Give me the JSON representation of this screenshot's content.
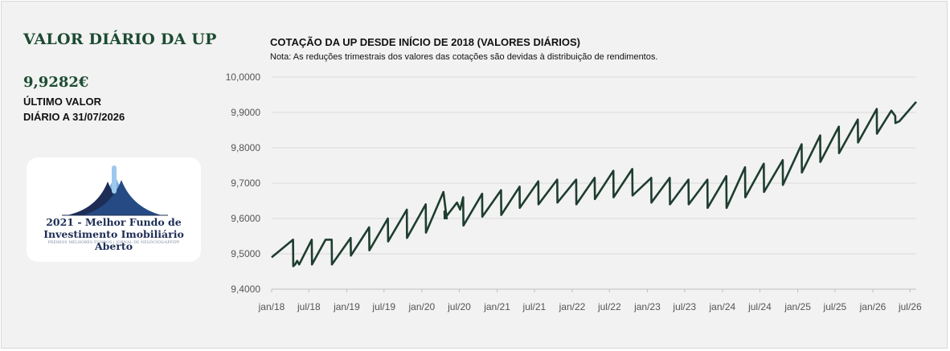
{
  "left": {
    "title": "VALOR DIÁRIO DA UP",
    "value": "9,9282€",
    "caption_line1": "ÚLTIMO VALOR",
    "caption_line2": "DIÁRIO A 31/07/2026"
  },
  "award": {
    "line1": "2021 - Melhor Fundo de",
    "line2": "Investimento Imobiliário Aberto",
    "line3": "PRÉMIOS MELHORES FUNDOS | JORNAL DE NEGÓCIOS/APFIPP",
    "logo_icon": "fund-award-logo-icon"
  },
  "chart_data": {
    "type": "line",
    "title": "COTAÇÃO DA UP DESDE INÍCIO DE 2018 (VALORES DIÁRIOS)",
    "subtitle": "Nota: As reduções trimestrais dos valores das cotações são devidas à distribuição de rendimentos.",
    "xlabel": "",
    "ylabel": "",
    "ylim": [
      9.4,
      10.0
    ],
    "xlim": [
      "2018-01-01",
      "2026-07-31"
    ],
    "yticks": [
      "9,4000",
      "9,5000",
      "9,6000",
      "9,7000",
      "9,8000",
      "9,9000",
      "10,0000"
    ],
    "ytick_values": [
      9.4,
      9.5,
      9.6,
      9.7,
      9.8,
      9.9,
      10.0
    ],
    "xticks": [
      "jan/18",
      "jul/18",
      "jan/19",
      "jul/19",
      "jan/20",
      "jul/20",
      "jan/21",
      "jul/21",
      "jan/22",
      "jul/22",
      "jan/23",
      "jul/23",
      "jan/24",
      "jul/24",
      "jan/25",
      "jul/25",
      "jan/26",
      "jul/26"
    ],
    "xtick_dates": [
      "2018-01-01",
      "2018-07-01",
      "2019-01-01",
      "2019-07-01",
      "2020-01-01",
      "2020-07-01",
      "2021-01-01",
      "2021-07-01",
      "2022-01-01",
      "2022-07-01",
      "2023-01-01",
      "2023-07-01",
      "2024-01-01",
      "2024-07-01",
      "2025-01-01",
      "2025-07-01",
      "2026-01-01",
      "2026-07-01"
    ],
    "grid": true,
    "line_color": "#1e3d2f",
    "series": [
      {
        "name": "",
        "x": [
          "2018-01-01",
          "2018-04-15",
          "2018-04-16",
          "2018-04-25",
          "2018-05-05",
          "2018-05-15",
          "2018-07-15",
          "2018-07-16",
          "2018-09-20",
          "2018-10-20",
          "2018-10-21",
          "2019-01-20",
          "2019-01-21",
          "2019-04-20",
          "2019-04-21",
          "2019-07-20",
          "2019-07-21",
          "2019-10-20",
          "2019-10-21",
          "2020-01-20",
          "2020-01-21",
          "2020-04-15",
          "2020-05-01",
          "2020-04-20",
          "2020-04-21",
          "2020-06-20",
          "2020-07-05",
          "2020-07-20",
          "2020-07-21",
          "2020-10-20",
          "2020-10-21",
          "2021-01-20",
          "2021-01-21",
          "2021-04-20",
          "2021-04-21",
          "2021-07-20",
          "2021-07-21",
          "2021-10-20",
          "2021-10-21",
          "2022-01-20",
          "2022-01-21",
          "2022-04-20",
          "2022-04-21",
          "2022-07-20",
          "2022-07-21",
          "2022-10-20",
          "2022-10-21",
          "2023-01-20",
          "2023-01-21",
          "2023-04-20",
          "2023-04-21",
          "2023-07-20",
          "2023-07-21",
          "2023-10-20",
          "2023-10-21",
          "2024-01-20",
          "2024-01-21",
          "2024-04-20",
          "2024-04-21",
          "2024-07-20",
          "2024-07-21",
          "2024-10-20",
          "2024-10-21",
          "2025-01-20",
          "2025-01-21",
          "2025-04-20",
          "2025-04-21",
          "2025-07-20",
          "2025-07-21",
          "2025-10-20",
          "2025-10-21",
          "2026-01-20",
          "2026-01-21",
          "2026-04-01",
          "2026-04-20",
          "2026-04-21",
          "2026-05-10",
          "2026-07-31"
        ],
        "values": [
          9.49,
          9.54,
          9.465,
          9.47,
          9.48,
          9.47,
          9.54,
          9.47,
          9.54,
          9.54,
          9.47,
          9.545,
          9.495,
          9.575,
          9.51,
          9.6,
          9.535,
          9.625,
          9.545,
          9.64,
          9.56,
          9.675,
          9.6,
          9.62,
          9.6,
          9.645,
          9.625,
          9.66,
          9.58,
          9.67,
          9.605,
          9.68,
          9.61,
          9.69,
          9.63,
          9.705,
          9.64,
          9.71,
          9.645,
          9.71,
          9.64,
          9.715,
          9.655,
          9.735,
          9.66,
          9.74,
          9.665,
          9.715,
          9.645,
          9.715,
          9.64,
          9.71,
          9.64,
          9.71,
          9.63,
          9.72,
          9.63,
          9.745,
          9.66,
          9.755,
          9.675,
          9.765,
          9.695,
          9.81,
          9.73,
          9.835,
          9.76,
          9.86,
          9.785,
          9.88,
          9.815,
          9.91,
          9.84,
          9.905,
          9.89,
          9.87,
          9.875,
          9.93
        ]
      }
    ]
  }
}
